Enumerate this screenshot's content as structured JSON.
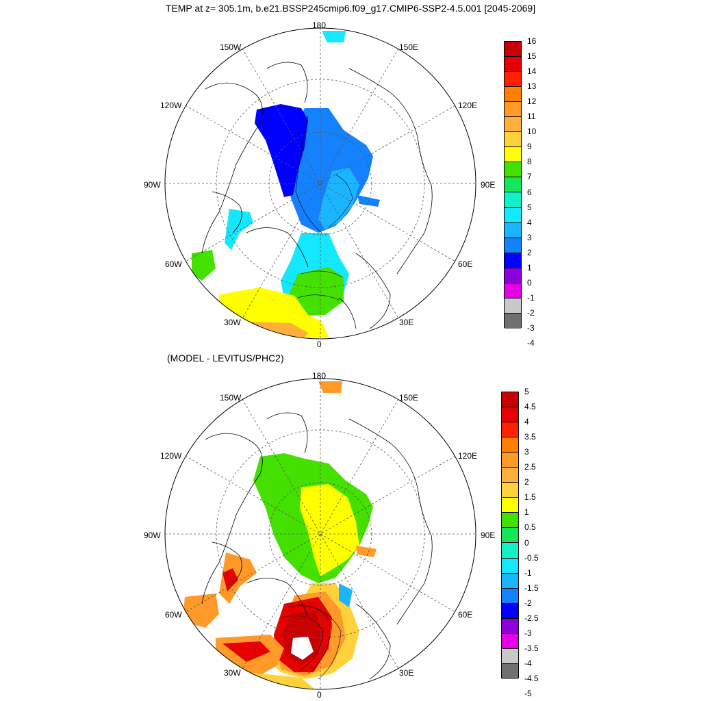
{
  "header": {
    "title": "TEMP at z= 305.1m, b.e21.BSSP245cmip6.f09_g17.CMIP6-SSP2-4.5.001 [2045-2069]",
    "subtitle": "(MODEL - LEVITUS/PHC2)"
  },
  "map_labels": {
    "top": "180",
    "bottom": "0",
    "left": "90W",
    "right": "90E",
    "nw1": "150W",
    "nw2": "120W",
    "ne1": "150E",
    "ne2": "120E",
    "sw1": "60W",
    "sw2": "30W",
    "se1": "60E",
    "se2": "30E"
  },
  "colorbar_top": {
    "ticks": [
      "16",
      "15",
      "14",
      "13",
      "12",
      "11",
      "10",
      "9",
      "8",
      "7",
      "6",
      "5",
      "4",
      "3",
      "2",
      "1",
      "0",
      "-1",
      "-2",
      "-3",
      "-4"
    ],
    "colors": [
      "#c80000",
      "#e60000",
      "#ff2000",
      "#ff8000",
      "#ff9a28",
      "#ffb03c",
      "#ffd23c",
      "#ffff00",
      "#44e000",
      "#14e85a",
      "#14f0c8",
      "#14e8ff",
      "#1ab4ff",
      "#1482ff",
      "#0000ff",
      "#8c00dc",
      "#e600e6",
      "#c8c8c8",
      "#707070"
    ]
  },
  "colorbar_bottom": {
    "ticks": [
      "5",
      "4.5",
      "4",
      "3.5",
      "3",
      "2.5",
      "2",
      "1.5",
      "1",
      "0.5",
      "0",
      "-0.5",
      "-1",
      "-1.5",
      "-2",
      "-2.5",
      "-3",
      "-3.5",
      "-4",
      "-4.5",
      "-5"
    ],
    "colors": [
      "#c80000",
      "#e60000",
      "#ff2000",
      "#ff8000",
      "#ff9a28",
      "#ffb03c",
      "#ffd23c",
      "#ffff00",
      "#44e000",
      "#14e85a",
      "#14f0c8",
      "#14e8ff",
      "#1ab4ff",
      "#1482ff",
      "#0000ff",
      "#8c00dc",
      "#e600e6",
      "#c8c8c8",
      "#707070"
    ]
  },
  "fields": {
    "top_colors": {
      "beaufort": "#0000ff",
      "eurasian": "#1482ff",
      "inner": "#1ab4ff",
      "atlantic": "#14e8ff",
      "green": "#44e000",
      "yellow": "#ffff00",
      "orange": "#ffb03c",
      "baffin": "#14e8ff"
    },
    "bottom_colors": {
      "basin": "#44e000",
      "center": "#ffff00",
      "atlantic_low": "#ffd23c",
      "atlantic_mid": "#ff9a28",
      "atlantic_high": "#e60000",
      "atlantic_core": "#c80000",
      "baffin": "#ff9a28"
    }
  }
}
